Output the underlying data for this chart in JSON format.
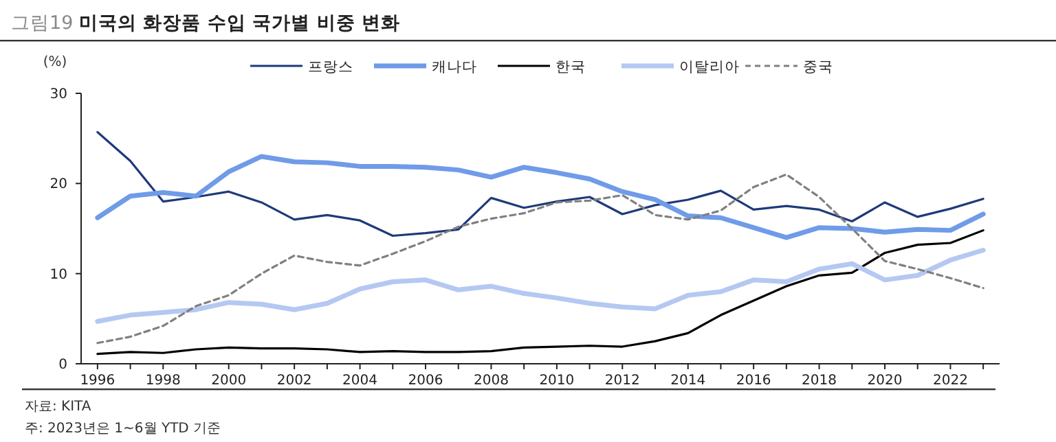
{
  "chart_data": {
    "type": "line",
    "title": "그림19 미국의 화장품 수입 국가별 비중 변화",
    "ylabel": "(%)",
    "x": [
      1996,
      1997,
      1998,
      1999,
      2000,
      2001,
      2002,
      2003,
      2004,
      2005,
      2006,
      2007,
      2008,
      2009,
      2010,
      2011,
      2012,
      2013,
      2014,
      2015,
      2016,
      2017,
      2018,
      2019,
      2020,
      2021,
      2022,
      2023
    ],
    "xlim": [
      1995.5,
      2023.5
    ],
    "xticks": [
      1996,
      {
        "value": 1997,
        "label": null
      },
      1998,
      {
        "value": 1999,
        "label": null
      },
      2000,
      {
        "value": 2001,
        "label": null
      },
      2002,
      {
        "value": 2003,
        "label": null
      },
      2004,
      {
        "value": 2005,
        "label": null
      },
      2006,
      {
        "value": 2007,
        "label": null
      },
      2008,
      {
        "value": 2009,
        "label": null
      },
      2010,
      {
        "value": 2011,
        "label": null
      },
      2012,
      {
        "value": 2013,
        "label": null
      },
      2014,
      {
        "value": 2015,
        "label": null
      },
      2016,
      {
        "value": 2017,
        "label": null
      },
      2018,
      {
        "value": 2019,
        "label": null
      },
      2020,
      {
        "value": 2021,
        "label": null
      },
      2022,
      {
        "value": 2023,
        "label": null
      }
    ],
    "ylim": [
      0,
      30
    ],
    "yticks": [
      0,
      10,
      20,
      30
    ],
    "grid": false,
    "legend": "top",
    "marker": "none",
    "series": [
      {
        "name": "프랑스",
        "color": "#1f3a7a",
        "line_style": "solid",
        "values": [
          25.7,
          22.5,
          18.0,
          18.5,
          19.1,
          17.9,
          16.0,
          16.5,
          15.9,
          14.2,
          14.5,
          14.9,
          18.4,
          17.3,
          18.0,
          18.5,
          16.6,
          17.6,
          18.2,
          19.2,
          17.1,
          17.5,
          17.1,
          15.8,
          17.9,
          16.3,
          17.2,
          18.3
        ]
      },
      {
        "name": "캐나다",
        "color": "#6f9be8",
        "line_style": "solid",
        "values": [
          16.2,
          18.6,
          19.0,
          18.6,
          21.3,
          23.0,
          22.4,
          22.3,
          21.9,
          21.9,
          21.8,
          21.5,
          20.7,
          21.8,
          21.2,
          20.5,
          19.1,
          18.2,
          16.4,
          16.2,
          15.1,
          14.0,
          15.1,
          15.0,
          14.6,
          14.9,
          14.8,
          16.6
        ]
      },
      {
        "name": "한국",
        "color": "#000000",
        "line_style": "solid",
        "values": [
          1.1,
          1.3,
          1.2,
          1.6,
          1.8,
          1.7,
          1.7,
          1.6,
          1.3,
          1.4,
          1.3,
          1.3,
          1.4,
          1.8,
          1.9,
          2.0,
          1.9,
          2.5,
          3.4,
          5.4,
          7.0,
          8.6,
          9.8,
          10.1,
          12.3,
          13.2,
          13.4,
          14.8
        ]
      },
      {
        "name": "이탈리아",
        "color": "#b4c8f2",
        "line_style": "solid",
        "values": [
          4.7,
          5.4,
          5.7,
          6.0,
          6.8,
          6.6,
          6.0,
          6.7,
          8.3,
          9.1,
          9.3,
          8.2,
          8.6,
          7.8,
          7.3,
          6.7,
          6.3,
          6.1,
          7.6,
          8.0,
          9.3,
          9.1,
          10.5,
          11.1,
          9.3,
          9.8,
          11.5,
          12.6
        ]
      },
      {
        "name": "중국",
        "color": "#808080",
        "line_style": "dashed",
        "values": [
          2.3,
          3.0,
          4.2,
          6.4,
          7.6,
          10.0,
          12.0,
          11.3,
          10.9,
          12.2,
          13.6,
          15.2,
          16.1,
          16.7,
          17.9,
          18.1,
          18.7,
          16.5,
          16.0,
          17.0,
          19.6,
          21.0,
          18.5,
          15.0,
          11.4,
          10.5,
          9.5,
          8.4
        ]
      }
    ],
    "annotations": [
      "자료: KITA",
      "주: 2023년은 1~6월 YTD 기준"
    ]
  }
}
